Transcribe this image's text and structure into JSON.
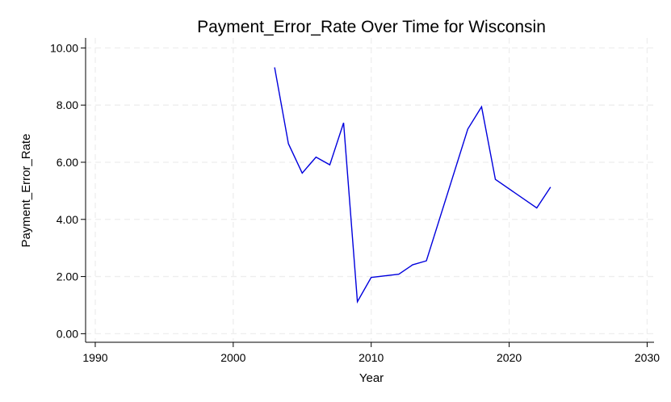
{
  "chart_data": {
    "type": "line",
    "title": "Payment_Error_Rate Over Time for Wisconsin",
    "xlabel": "Year",
    "ylabel": "Payment_Error_Rate",
    "xlim": [
      1989.3,
      2030.5
    ],
    "ylim": [
      -0.3,
      10.35
    ],
    "x_ticks": [
      1990,
      2000,
      2010,
      2020,
      2030
    ],
    "x_tick_labels": [
      "1990",
      "2000",
      "2010",
      "2020",
      "2030"
    ],
    "y_ticks": [
      0,
      2,
      4,
      6,
      8,
      10
    ],
    "y_tick_labels": [
      "0.00",
      "2.00",
      "4.00",
      "6.00",
      "8.00",
      "10.00"
    ],
    "grid": true,
    "legend": "none",
    "series": [
      {
        "color": "#0000dd",
        "x": [
          2003,
          2004,
          2005,
          2006,
          2007,
          2008,
          2009,
          2010,
          2012,
          2013,
          2014,
          2017,
          2018,
          2019,
          2022,
          2023
        ],
        "y": [
          9.32,
          6.65,
          5.62,
          6.18,
          5.91,
          7.38,
          1.12,
          1.97,
          2.08,
          2.41,
          2.55,
          7.16,
          7.94,
          5.4,
          4.4,
          5.13
        ]
      }
    ]
  }
}
